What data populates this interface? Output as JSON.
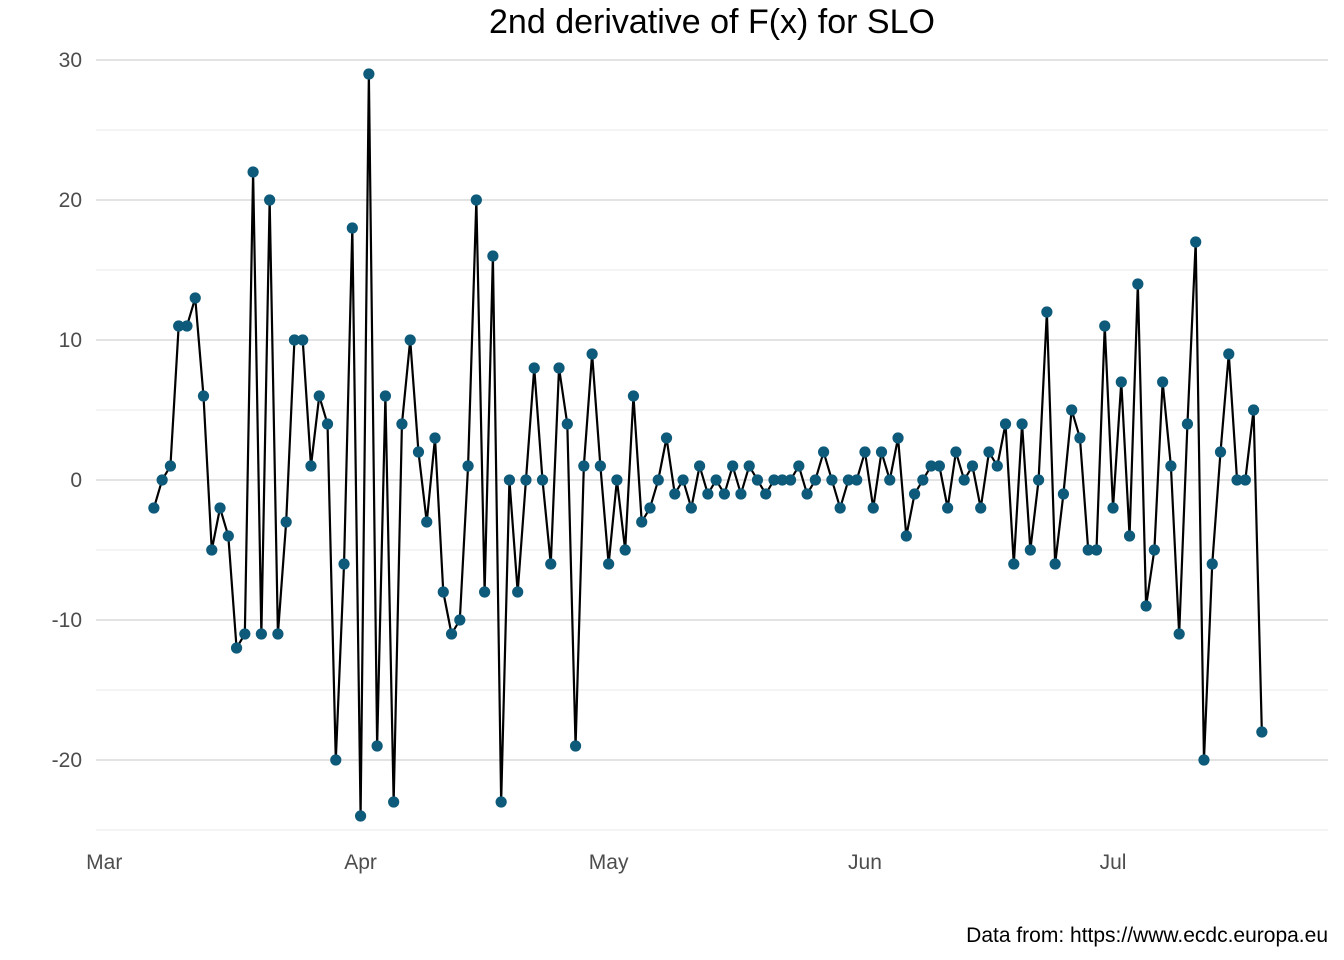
{
  "chart_data": {
    "type": "line",
    "title": "2nd derivative of F(x) for SLO",
    "caption": "Data from: https://www.ecdc.europa.eu",
    "xlabel": "",
    "ylabel": "",
    "x_start": "2020-03-07",
    "x_step_days": 1,
    "xlim": [
      "2020-02-29",
      "2020-07-27"
    ],
    "ylim": [
      -25,
      30
    ],
    "x_ticks": [
      {
        "date": "2020-03-01",
        "label": "Mar"
      },
      {
        "date": "2020-04-01",
        "label": "Apr"
      },
      {
        "date": "2020-05-01",
        "label": "May"
      },
      {
        "date": "2020-06-01",
        "label": "Jun"
      },
      {
        "date": "2020-07-01",
        "label": "Jul"
      }
    ],
    "y_ticks": [
      -20,
      -10,
      0,
      10,
      20,
      30
    ],
    "grid": true,
    "colors": {
      "line": "#000000",
      "point": "#0d5a7a"
    },
    "values": [
      -2,
      0,
      1,
      11,
      11,
      13,
      6,
      -5,
      -2,
      -4,
      -12,
      -11,
      22,
      -11,
      20,
      -11,
      -3,
      10,
      10,
      1,
      6,
      4,
      -20,
      -6,
      18,
      -24,
      29,
      -19,
      6,
      -23,
      4,
      10,
      2,
      -3,
      3,
      -8,
      -11,
      -10,
      1,
      20,
      -8,
      16,
      -23,
      0,
      -8,
      0,
      8,
      0,
      -6,
      8,
      4,
      -19,
      1,
      9,
      1,
      -6,
      0,
      -5,
      6,
      -3,
      -2,
      0,
      3,
      -1,
      0,
      -2,
      1,
      -1,
      0,
      -1,
      1,
      -1,
      1,
      0,
      -1,
      0,
      0,
      0,
      1,
      -1,
      0,
      2,
      0,
      -2,
      0,
      0,
      2,
      -2,
      2,
      0,
      3,
      -4,
      -1,
      0,
      1,
      1,
      -2,
      2,
      0,
      1,
      -2,
      2,
      1,
      4,
      -6,
      4,
      -5,
      0,
      12,
      -6,
      -1,
      5,
      3,
      -5,
      -5,
      11,
      -2,
      7,
      -4,
      14,
      -9,
      -5,
      7,
      1,
      -11,
      4,
      17,
      -20,
      -6,
      2,
      9,
      0,
      0,
      5,
      -18
    ]
  }
}
